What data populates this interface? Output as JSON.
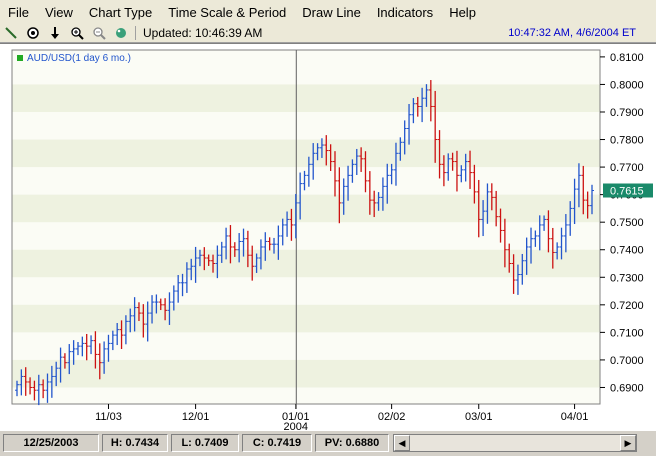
{
  "menu": [
    "File",
    "View",
    "Chart Type",
    "Time Scale & Period",
    "Draw Line",
    "Indicators",
    "Help"
  ],
  "toolbar": {
    "updated": "Updated: 10:46:39 AM",
    "datetime": "10:47:32 AM, 4/6/2004 ET",
    "tools": [
      "draw-line-icon",
      "crosshair-icon",
      "arrow-down-icon",
      "zoom-in-icon",
      "zoom-out-icon",
      "color-palette-icon"
    ]
  },
  "legend": "AUD/USD(1 day 6 mo.)",
  "colors": {
    "up": "#2255cc",
    "down": "#cc1111",
    "band": "#eef2e0",
    "last_price_bg": "#1a8a6a"
  },
  "status": {
    "date": "12/25/2003",
    "high": "H: 0.7434",
    "low": "L: 0.7409",
    "close": "C: 0.7419",
    "pv": "PV: 0.6880"
  },
  "chart_data": {
    "type": "ohlc",
    "series_name": "AUD/USD(1 day 6 mo.)",
    "ylim": [
      0.684,
      0.8125
    ],
    "y_ticks": [
      "0.6900",
      "0.7000",
      "0.7100",
      "0.7200",
      "0.7300",
      "0.7400",
      "0.7500",
      "0.7600",
      "0.7700",
      "0.7800",
      "0.7900",
      "0.8000",
      "0.8100"
    ],
    "x_ticks": [
      {
        "label": "11/03",
        "index": 21
      },
      {
        "label": "12/01",
        "index": 41
      },
      {
        "label": "01/01",
        "sublabel": "2004",
        "index": 64
      },
      {
        "label": "02/02",
        "index": 86
      },
      {
        "label": "03/01",
        "index": 106
      },
      {
        "label": "04/01",
        "index": 128
      }
    ],
    "last_price": "0.7615",
    "closes": [
      0.691,
      0.694,
      0.692,
      0.69,
      0.689,
      0.691,
      0.689,
      0.692,
      0.694,
      0.697,
      0.701,
      0.699,
      0.703,
      0.704,
      0.705,
      0.706,
      0.705,
      0.707,
      0.702,
      0.699,
      0.704,
      0.706,
      0.709,
      0.711,
      0.709,
      0.714,
      0.716,
      0.719,
      0.717,
      0.713,
      0.717,
      0.721,
      0.721,
      0.72,
      0.718,
      0.721,
      0.725,
      0.728,
      0.728,
      0.733,
      0.734,
      0.737,
      0.738,
      0.737,
      0.736,
      0.735,
      0.738,
      0.741,
      0.745,
      0.741,
      0.74,
      0.743,
      0.744,
      0.738,
      0.734,
      0.737,
      0.741,
      0.743,
      0.742,
      0.742,
      0.745,
      0.749,
      0.751,
      0.749,
      0.757,
      0.764,
      0.767,
      0.771,
      0.775,
      0.777,
      0.778,
      0.776,
      0.772,
      0.765,
      0.757,
      0.763,
      0.767,
      0.771,
      0.774,
      0.773,
      0.765,
      0.758,
      0.757,
      0.759,
      0.763,
      0.767,
      0.769,
      0.775,
      0.779,
      0.784,
      0.789,
      0.793,
      0.792,
      0.795,
      0.798,
      0.792,
      0.78,
      0.771,
      0.768,
      0.773,
      0.772,
      0.767,
      0.769,
      0.772,
      0.768,
      0.761,
      0.751,
      0.754,
      0.761,
      0.759,
      0.752,
      0.747,
      0.74,
      0.735,
      0.729,
      0.731,
      0.736,
      0.741,
      0.744,
      0.745,
      0.749,
      0.751,
      0.744,
      0.739,
      0.741,
      0.745,
      0.749,
      0.755,
      0.762,
      0.767,
      0.758,
      0.756,
      0.7615
    ]
  }
}
